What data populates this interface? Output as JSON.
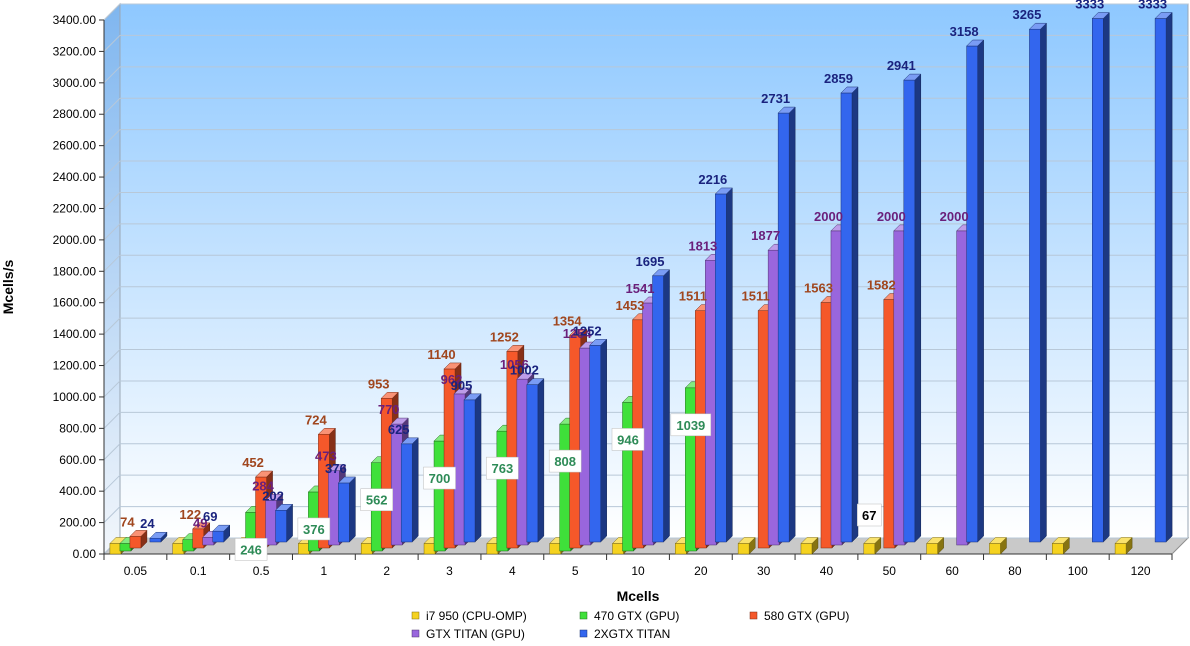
{
  "chart_data": {
    "type": "bar",
    "style": "3d-clustered",
    "xlabel": "Mcells",
    "ylabel": "Mcells/s",
    "ylim": [
      0,
      3400
    ],
    "ytick_step": 200,
    "ytick_format": "0.00",
    "grid": true,
    "legend_position": "bottom",
    "categories": [
      "0.05",
      "0.1",
      "0.5",
      "1",
      "2",
      "3",
      "4",
      "5",
      "10",
      "20",
      "30",
      "40",
      "50",
      "60",
      "80",
      "100",
      "120"
    ],
    "series": [
      {
        "name": "i7 950 (CPU-OMP)",
        "color": "#f5d21f",
        "label_color": "#000000",
        "values": [
          67,
          67,
          67,
          67,
          67,
          67,
          67,
          67,
          67,
          67,
          67,
          67,
          67,
          67,
          67,
          67,
          67
        ],
        "labels": [
          null,
          null,
          null,
          null,
          null,
          null,
          null,
          null,
          null,
          null,
          null,
          null,
          "67",
          null,
          null,
          null,
          null
        ]
      },
      {
        "name": "470 GTX (GPU)",
        "color": "#3fe03a",
        "label_color": "#2e8b57",
        "values": [
          48,
          72,
          246,
          376,
          562,
          700,
          763,
          808,
          946,
          1039,
          null,
          null,
          null,
          null,
          null,
          null,
          null
        ],
        "labels": [
          null,
          null,
          "246",
          "376",
          "562",
          "700",
          "763",
          "808",
          "946",
          "1039",
          null,
          null,
          null,
          null,
          null,
          null,
          null
        ]
      },
      {
        "name": "580 GTX (GPU)",
        "color": "#f5582a",
        "label_color": "#a0461e",
        "values": [
          74,
          122,
          452,
          724,
          953,
          1140,
          1252,
          1354,
          1453,
          1511,
          1511,
          1563,
          1582,
          null,
          null,
          null,
          null
        ],
        "labels": [
          "74",
          "122",
          "452",
          "724",
          "953",
          "1140",
          "1252",
          "1354",
          "1453",
          "1511",
          "1511",
          "1563",
          "1582",
          null,
          null,
          null,
          null
        ]
      },
      {
        "name": "GTX TITAN (GPU)",
        "color": "#9966dd",
        "label_color": "#6a1f7a",
        "values": [
          null,
          49,
          284,
          473,
          770,
          962,
          1056,
          1254,
          1541,
          1813,
          1877,
          2000,
          2000,
          2000,
          null,
          null,
          null
        ],
        "labels": [
          null,
          "49",
          "284",
          "473",
          "770",
          "962",
          "1056",
          "1254",
          "1541",
          "1813",
          "1877",
          "2000",
          "2000",
          "2000",
          null,
          null,
          null
        ]
      },
      {
        "name": "2XGTX TITAN",
        "color": "#3366ee",
        "label_color": "#1a237e",
        "values": [
          24,
          69,
          202,
          376,
          625,
          905,
          1002,
          1252,
          1695,
          2216,
          2731,
          2859,
          2941,
          3158,
          3265,
          3333,
          3333
        ],
        "labels": [
          "24",
          "69",
          "202",
          "376",
          "625",
          "905",
          "1002",
          "1252",
          "1695",
          "2216",
          "2731",
          "2859",
          "2941",
          "3158",
          "3265",
          "3333",
          "3333"
        ]
      }
    ]
  }
}
